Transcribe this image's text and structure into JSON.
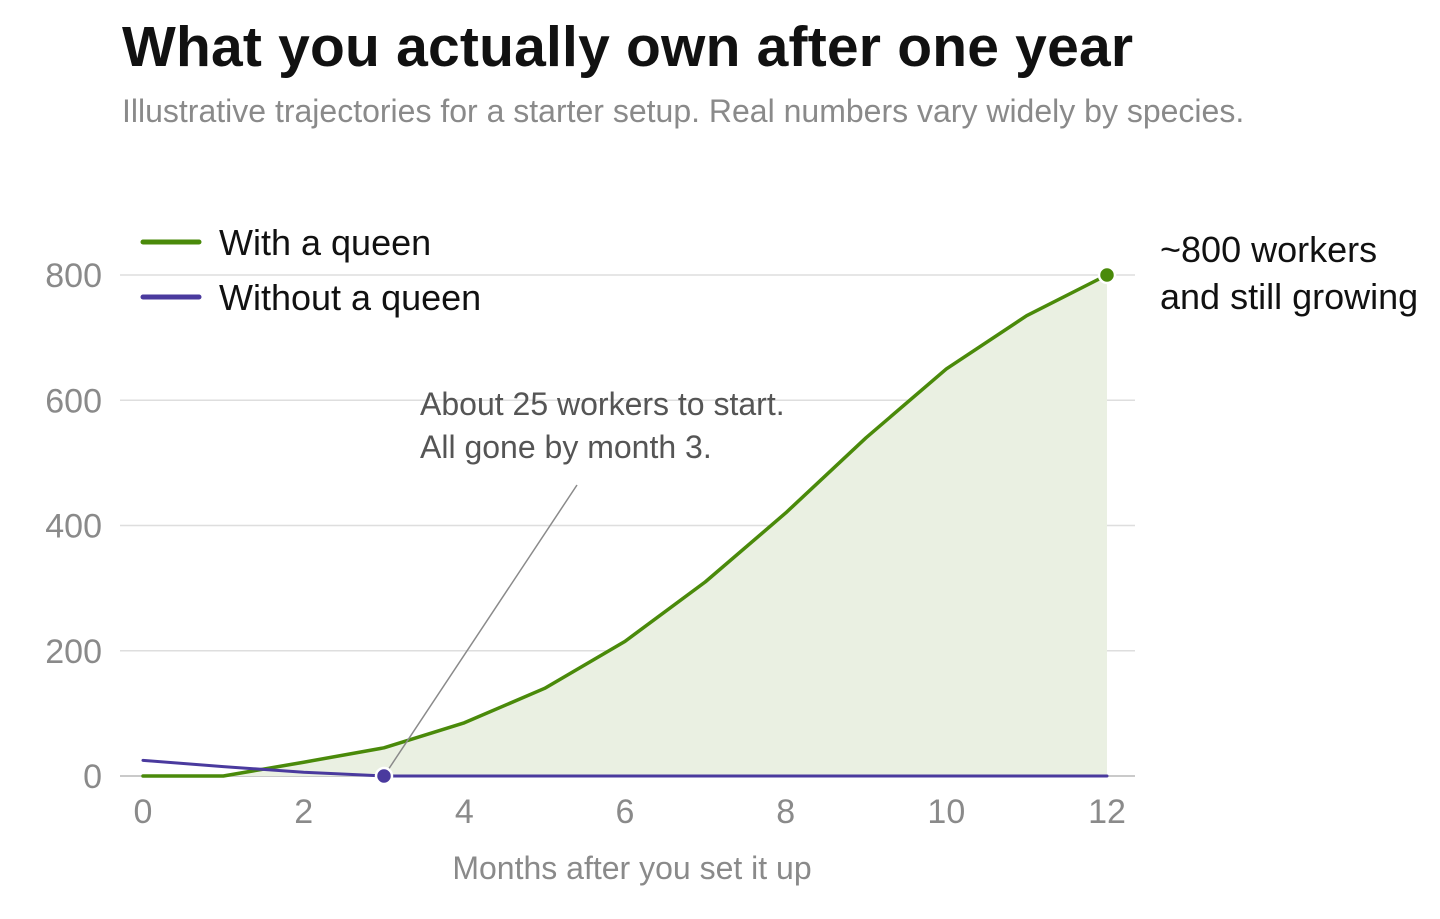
{
  "chart_data": {
    "type": "line",
    "title": "What you actually own after one year",
    "subtitle": "Illustrative trajectories for a starter setup. Real numbers vary widely by species.",
    "xlabel": "Months after you set it up",
    "ylabel": "",
    "xlim": [
      0,
      12
    ],
    "ylim": [
      0,
      800
    ],
    "x_ticks": [
      0,
      2,
      4,
      6,
      8,
      10,
      12
    ],
    "y_ticks": [
      0,
      200,
      400,
      600,
      800
    ],
    "grid": "horizontal",
    "legend_position": "top-left",
    "series": [
      {
        "name": "With a queen",
        "color": "#4a8a0a",
        "fill": "area",
        "fill_color": "#eaf0e2",
        "x": [
          0,
          1,
          2,
          3,
          4,
          5,
          6,
          7,
          8,
          9,
          10,
          11,
          12
        ],
        "y": [
          0,
          0,
          22,
          45,
          85,
          140,
          215,
          310,
          420,
          540,
          650,
          735,
          800
        ]
      },
      {
        "name": "Without a queen",
        "color": "#4a3a9e",
        "x": [
          0,
          1,
          2,
          3,
          4,
          5,
          6,
          7,
          8,
          9,
          10,
          11,
          12
        ],
        "y": [
          25,
          15,
          6,
          0,
          0,
          0,
          0,
          0,
          0,
          0,
          0,
          0,
          0
        ]
      }
    ],
    "annotations": [
      {
        "id": "start",
        "lines": [
          "About 25 workers to start.",
          "All gone by month 3."
        ],
        "point": {
          "x": 3,
          "y": 0
        },
        "color": "#4a3a9e"
      },
      {
        "id": "end",
        "lines": [
          "~800 workers",
          "and still growing"
        ],
        "point": {
          "x": 12,
          "y": 800
        },
        "color": "#4a8a0a"
      }
    ]
  }
}
